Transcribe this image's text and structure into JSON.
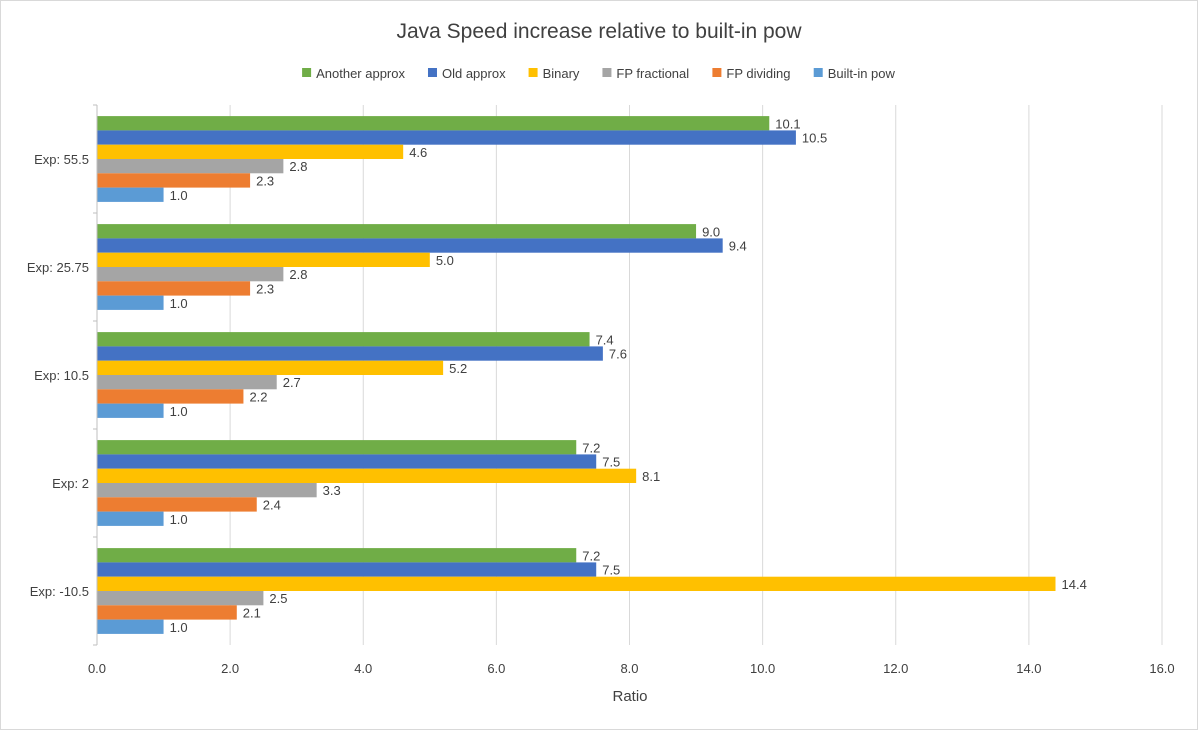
{
  "chart_data": {
    "type": "bar",
    "orientation": "horizontal",
    "title": "Java Speed increase relative to built-in pow",
    "xlabel": "Ratio",
    "ylabel": "",
    "xlim": [
      0,
      16
    ],
    "xticks": [
      "0.0",
      "2.0",
      "4.0",
      "6.0",
      "8.0",
      "10.0",
      "12.0",
      "14.0",
      "16.0"
    ],
    "grid": true,
    "legend_position": "top",
    "categories": [
      "Exp: 55.5",
      "Exp: 25.75",
      "Exp: 10.5",
      "Exp: 2",
      "Exp: -10.5"
    ],
    "series": [
      {
        "name": "Another approx",
        "color": "#70AD47",
        "values": [
          10.1,
          9.0,
          7.4,
          7.2,
          7.2
        ]
      },
      {
        "name": "Old approx",
        "color": "#4472C4",
        "values": [
          10.5,
          9.4,
          7.6,
          7.5,
          7.5
        ]
      },
      {
        "name": "Binary",
        "color": "#FFC000",
        "values": [
          4.6,
          5.0,
          5.2,
          8.1,
          14.4
        ]
      },
      {
        "name": "FP fractional",
        "color": "#A5A5A5",
        "values": [
          2.8,
          2.8,
          2.7,
          3.3,
          2.5
        ]
      },
      {
        "name": "FP dividing",
        "color": "#ED7D31",
        "values": [
          2.3,
          2.3,
          2.2,
          2.4,
          2.1
        ]
      },
      {
        "name": "Built-in pow",
        "color": "#5B9BD5",
        "values": [
          1.0,
          1.0,
          1.0,
          1.0,
          1.0
        ]
      }
    ]
  }
}
